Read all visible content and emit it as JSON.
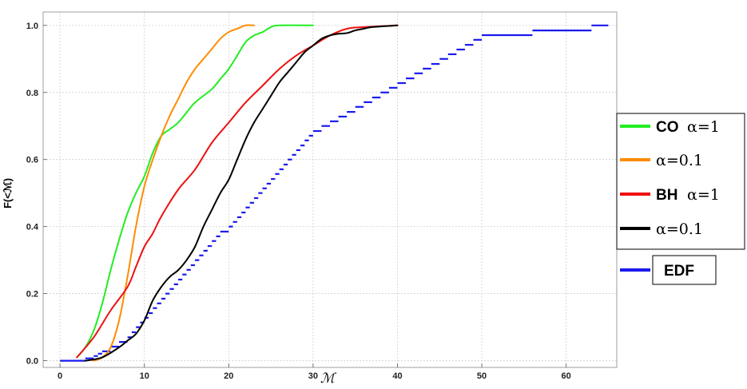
{
  "chart_data": {
    "type": "line",
    "title": "",
    "xlabel": "ℳ",
    "ylabel": "F(<ℳ)",
    "xlim": [
      -2,
      66
    ],
    "ylim": [
      -0.02,
      1.04
    ],
    "xticks": [
      0,
      10,
      20,
      30,
      40,
      50,
      60
    ],
    "yticks": [
      0.0,
      0.2,
      0.4,
      0.6,
      0.8,
      1.0
    ],
    "xtick_labels": [
      "0",
      "10",
      "20",
      "30",
      "40",
      "50",
      "60"
    ],
    "ytick_labels": [
      "0.0",
      "0.2",
      "0.4",
      "0.6",
      "0.8",
      "1.0"
    ],
    "grid": true,
    "legend_position": "right",
    "series": [
      {
        "name": "CO α=1",
        "legend_prefix": "CO",
        "legend_param": "α=1",
        "color": "#22ee22",
        "style": "line",
        "points": [
          [
            2,
            0.01
          ],
          [
            3,
            0.04
          ],
          [
            4,
            0.09
          ],
          [
            5,
            0.17
          ],
          [
            6,
            0.27
          ],
          [
            7,
            0.36
          ],
          [
            8,
            0.44
          ],
          [
            9,
            0.5
          ],
          [
            10,
            0.55
          ],
          [
            11,
            0.62
          ],
          [
            12,
            0.67
          ],
          [
            13,
            0.69
          ],
          [
            14,
            0.71
          ],
          [
            15,
            0.74
          ],
          [
            16,
            0.77
          ],
          [
            18,
            0.81
          ],
          [
            19,
            0.84
          ],
          [
            20,
            0.87
          ],
          [
            21,
            0.91
          ],
          [
            22,
            0.95
          ],
          [
            23,
            0.97
          ],
          [
            24,
            0.98
          ],
          [
            25,
            0.995
          ],
          [
            26,
            1.0
          ],
          [
            30,
            1.0
          ]
        ]
      },
      {
        "name": "α=0.1",
        "legend_prefix": "",
        "legend_param": "α=0.1",
        "color": "#ff8c00",
        "style": "line",
        "points": [
          [
            4,
            0.0
          ],
          [
            5,
            0.01
          ],
          [
            6,
            0.04
          ],
          [
            7,
            0.12
          ],
          [
            8,
            0.25
          ],
          [
            9,
            0.4
          ],
          [
            10,
            0.52
          ],
          [
            11,
            0.6
          ],
          [
            12,
            0.67
          ],
          [
            13,
            0.73
          ],
          [
            14,
            0.78
          ],
          [
            15,
            0.83
          ],
          [
            16,
            0.87
          ],
          [
            17,
            0.9
          ],
          [
            18,
            0.93
          ],
          [
            19,
            0.96
          ],
          [
            20,
            0.98
          ],
          [
            21,
            0.99
          ],
          [
            22,
            1.0
          ],
          [
            23,
            1.0
          ]
        ]
      },
      {
        "name": "BH α=1",
        "legend_prefix": "BH",
        "legend_param": "α=1",
        "color": "#ee1111",
        "style": "line",
        "points": [
          [
            2,
            0.01
          ],
          [
            4,
            0.07
          ],
          [
            6,
            0.15
          ],
          [
            8,
            0.22
          ],
          [
            9,
            0.28
          ],
          [
            10,
            0.34
          ],
          [
            11,
            0.38
          ],
          [
            12,
            0.43
          ],
          [
            14,
            0.51
          ],
          [
            16,
            0.57
          ],
          [
            18,
            0.65
          ],
          [
            20,
            0.71
          ],
          [
            22,
            0.77
          ],
          [
            24,
            0.82
          ],
          [
            26,
            0.87
          ],
          [
            28,
            0.91
          ],
          [
            30,
            0.94
          ],
          [
            32,
            0.97
          ],
          [
            34,
            0.99
          ],
          [
            36,
            0.995
          ],
          [
            40,
            1.0
          ]
        ]
      },
      {
        "name": "α=0.1",
        "legend_prefix": "",
        "legend_param": "α=0.1",
        "color": "#000000",
        "style": "line",
        "points": [
          [
            3,
            0.0
          ],
          [
            5,
            0.01
          ],
          [
            7,
            0.04
          ],
          [
            8,
            0.06
          ],
          [
            9,
            0.08
          ],
          [
            10,
            0.12
          ],
          [
            11,
            0.18
          ],
          [
            12,
            0.22
          ],
          [
            13,
            0.25
          ],
          [
            14,
            0.27
          ],
          [
            15,
            0.3
          ],
          [
            16,
            0.34
          ],
          [
            17,
            0.4
          ],
          [
            18,
            0.45
          ],
          [
            19,
            0.5
          ],
          [
            20,
            0.54
          ],
          [
            21,
            0.6
          ],
          [
            22,
            0.66
          ],
          [
            23,
            0.71
          ],
          [
            24,
            0.75
          ],
          [
            25,
            0.79
          ],
          [
            26,
            0.83
          ],
          [
            27,
            0.86
          ],
          [
            28,
            0.89
          ],
          [
            29,
            0.92
          ],
          [
            30,
            0.94
          ],
          [
            31,
            0.96
          ],
          [
            32,
            0.97
          ],
          [
            33,
            0.975
          ],
          [
            34,
            0.977
          ],
          [
            35,
            0.985
          ],
          [
            36,
            0.99
          ],
          [
            37,
            0.995
          ],
          [
            40,
            1.0
          ]
        ]
      },
      {
        "name": "EDF",
        "legend_prefix": "EDF",
        "legend_param": "",
        "color": "#1a1aee",
        "style": "step",
        "points": [
          [
            0,
            0.0
          ],
          [
            3,
            0.007
          ],
          [
            4,
            0.014
          ],
          [
            4.5,
            0.021
          ],
          [
            5,
            0.028
          ],
          [
            6,
            0.042
          ],
          [
            7,
            0.056
          ],
          [
            8,
            0.07
          ],
          [
            8.5,
            0.085
          ],
          [
            9,
            0.1
          ],
          [
            9.5,
            0.114
          ],
          [
            10,
            0.128
          ],
          [
            10.5,
            0.142
          ],
          [
            11,
            0.157
          ],
          [
            11.5,
            0.171
          ],
          [
            12,
            0.185
          ],
          [
            12.5,
            0.2
          ],
          [
            13,
            0.214
          ],
          [
            13.5,
            0.228
          ],
          [
            14,
            0.242
          ],
          [
            14.5,
            0.257
          ],
          [
            15,
            0.271
          ],
          [
            15.5,
            0.285
          ],
          [
            16,
            0.3
          ],
          [
            16.5,
            0.314
          ],
          [
            17,
            0.328
          ],
          [
            17.5,
            0.342
          ],
          [
            18,
            0.357
          ],
          [
            18.5,
            0.371
          ],
          [
            19,
            0.385
          ],
          [
            20,
            0.4
          ],
          [
            20.5,
            0.414
          ],
          [
            21,
            0.428
          ],
          [
            21.5,
            0.442
          ],
          [
            22,
            0.457
          ],
          [
            22.5,
            0.471
          ],
          [
            23,
            0.485
          ],
          [
            23.5,
            0.5
          ],
          [
            24,
            0.514
          ],
          [
            24.5,
            0.528
          ],
          [
            25,
            0.542
          ],
          [
            25.5,
            0.557
          ],
          [
            26,
            0.571
          ],
          [
            26.5,
            0.585
          ],
          [
            27,
            0.6
          ],
          [
            27.5,
            0.614
          ],
          [
            28,
            0.628
          ],
          [
            28.5,
            0.642
          ],
          [
            29,
            0.657
          ],
          [
            29.5,
            0.671
          ],
          [
            30,
            0.685
          ],
          [
            31,
            0.7
          ],
          [
            32,
            0.714
          ],
          [
            33,
            0.728
          ],
          [
            34,
            0.742
          ],
          [
            35,
            0.757
          ],
          [
            36,
            0.771
          ],
          [
            37,
            0.785
          ],
          [
            38,
            0.8
          ],
          [
            39,
            0.814
          ],
          [
            40,
            0.828
          ],
          [
            41,
            0.842
          ],
          [
            42,
            0.857
          ],
          [
            43,
            0.871
          ],
          [
            44,
            0.885
          ],
          [
            45,
            0.9
          ],
          [
            46,
            0.914
          ],
          [
            47,
            0.928
          ],
          [
            48,
            0.942
          ],
          [
            49,
            0.957
          ],
          [
            50,
            0.971
          ],
          [
            56,
            0.985
          ],
          [
            63,
            1.0
          ],
          [
            65,
            1.0
          ]
        ]
      }
    ]
  }
}
